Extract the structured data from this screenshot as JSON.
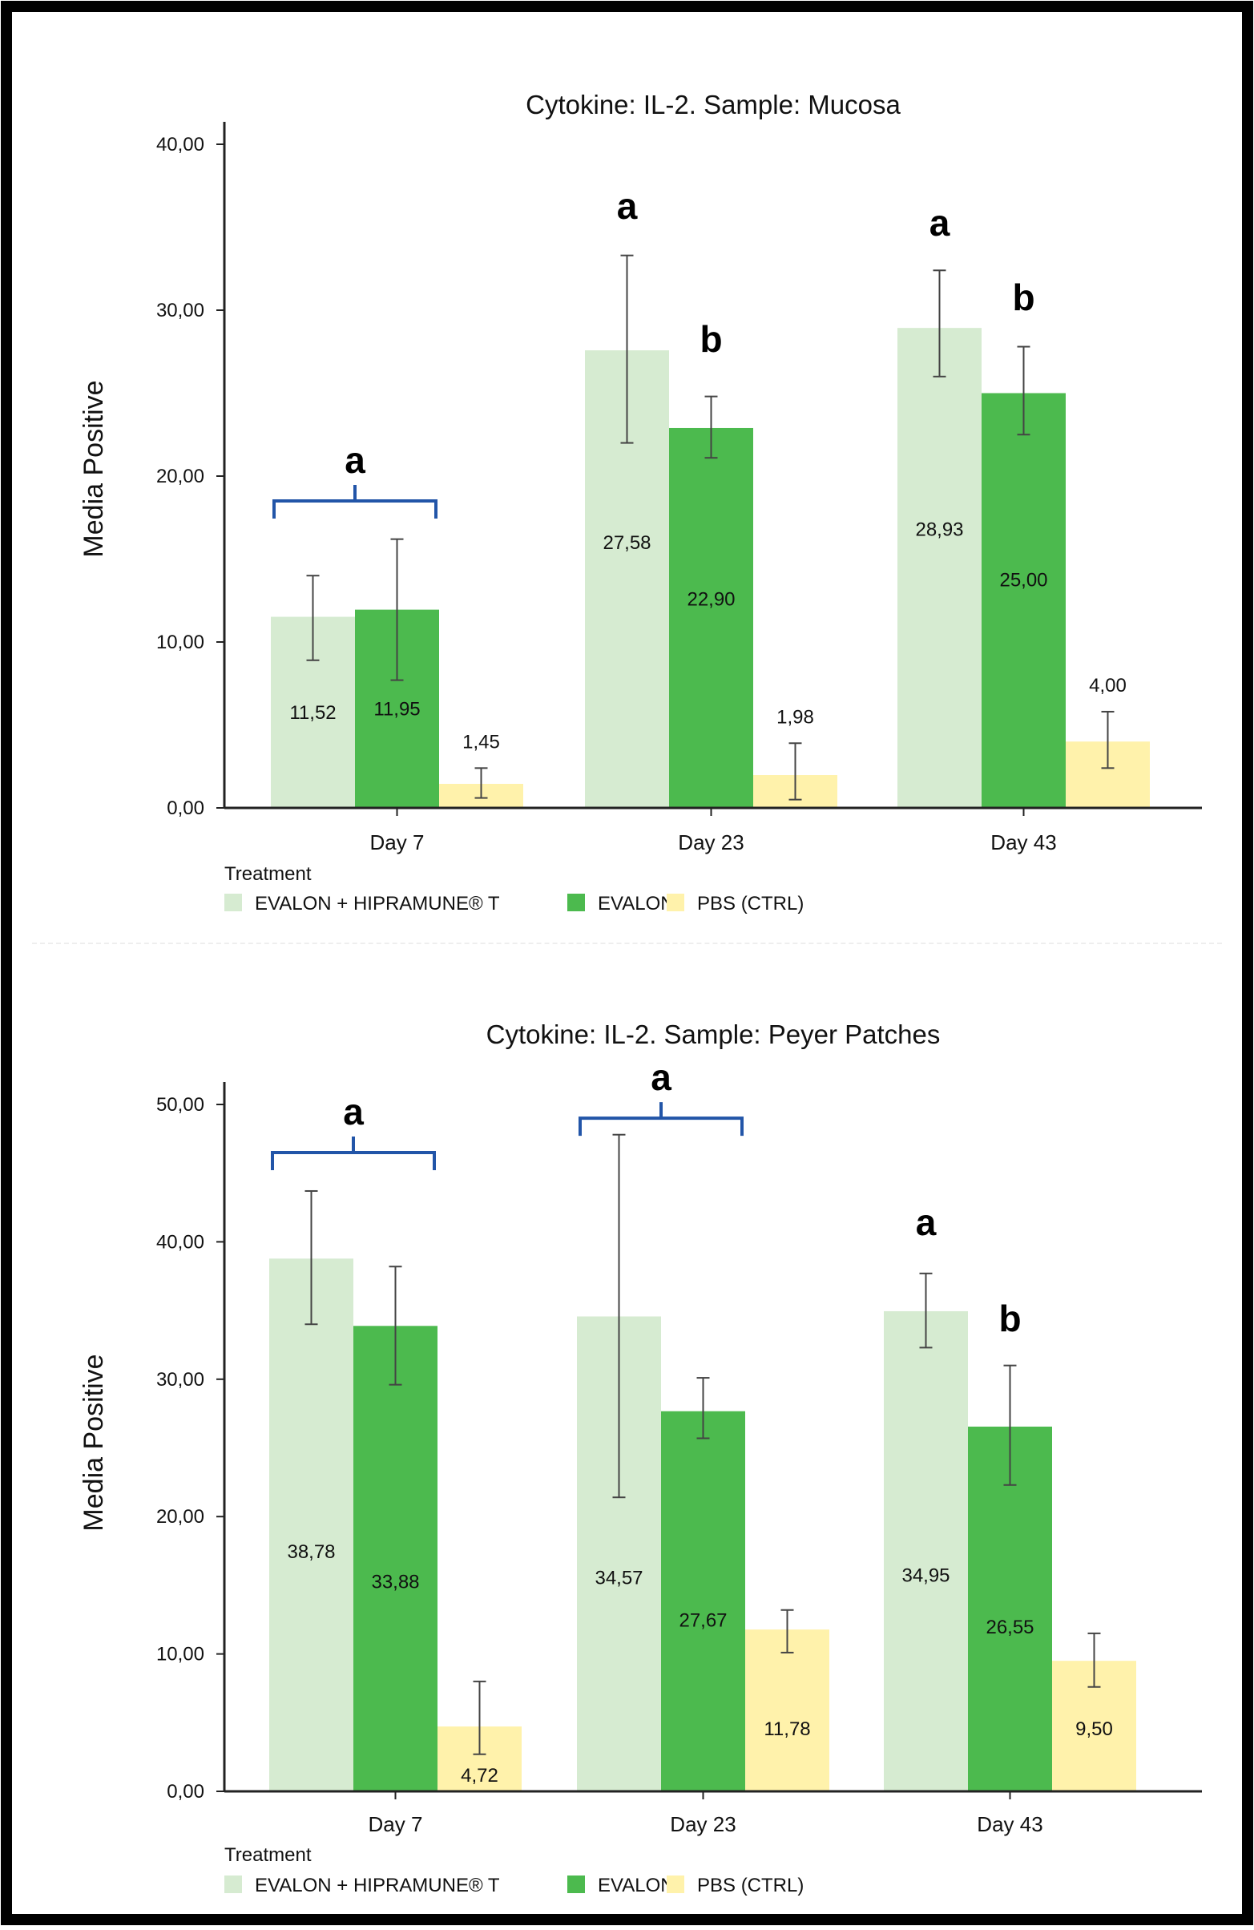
{
  "colors": {
    "evalon_hipramune": "#d6ebd1",
    "evalon": "#4cba4e",
    "pbs": "#fff2ab",
    "bracket": "#2255a8",
    "axis": "#222222",
    "frame": "#000000"
  },
  "chart_data": [
    {
      "type": "bar",
      "title": "Cytokine: IL-2. Sample: Mucosa",
      "ylabel": "Media Positive",
      "xlabel": "",
      "ylim": [
        0,
        40
      ],
      "yticks": [
        "0,00",
        "10,00",
        "20,00",
        "30,00",
        "40,00"
      ],
      "categories": [
        "Day 7",
        "Day 23",
        "Day 43"
      ],
      "legend_title": "Treatment",
      "series": [
        {
          "name": "EVALON + HIPRAMUNE® T",
          "values": [
            11.52,
            27.58,
            28.93
          ],
          "labels": [
            "11,52",
            "27,58",
            "28,93"
          ],
          "err_low": [
            8.9,
            22.0,
            26.0
          ],
          "err_high": [
            14.0,
            33.3,
            32.4
          ]
        },
        {
          "name": "EVALON",
          "values": [
            11.95,
            22.9,
            25.0
          ],
          "labels": [
            "11,95",
            "22,90",
            "25,00"
          ],
          "err_low": [
            7.7,
            21.1,
            22.5
          ],
          "err_high": [
            16.2,
            24.8,
            27.8
          ]
        },
        {
          "name": "PBS (CTRL)",
          "values": [
            1.45,
            1.98,
            4.0
          ],
          "labels": [
            "1,45",
            "1,98",
            "4,00"
          ],
          "err_low": [
            0.6,
            0.5,
            2.4
          ],
          "err_high": [
            2.4,
            3.9,
            5.8
          ]
        }
      ],
      "annotations": [
        {
          "text": "a",
          "category": 0,
          "bracket": true,
          "value": 18.5
        },
        {
          "text": "a",
          "category": 1,
          "series": 0,
          "value": 35.5
        },
        {
          "text": "b",
          "category": 1,
          "series": 1,
          "value": 27.5
        },
        {
          "text": "a",
          "category": 2,
          "series": 0,
          "value": 34.5
        },
        {
          "text": "b",
          "category": 2,
          "series": 1,
          "value": 30.0
        }
      ]
    },
    {
      "type": "bar",
      "title": "Cytokine: IL-2. Sample: Peyer Patches",
      "ylabel": "Media Positive",
      "xlabel": "",
      "ylim": [
        0,
        50
      ],
      "yticks": [
        "0,00",
        "10,00",
        "20,00",
        "30,00",
        "40,00",
        "50,00"
      ],
      "categories": [
        "Day 7",
        "Day 23",
        "Day 43"
      ],
      "legend_title": "Treatment",
      "series": [
        {
          "name": "EVALON + HIPRAMUNE® T",
          "values": [
            38.78,
            34.57,
            34.95
          ],
          "labels": [
            "38,78",
            "34,57",
            "34,95"
          ],
          "err_low": [
            34.0,
            21.4,
            32.3
          ],
          "err_high": [
            43.7,
            47.8,
            37.7
          ]
        },
        {
          "name": "EVALON",
          "values": [
            33.88,
            27.67,
            26.55
          ],
          "labels": [
            "33,88",
            "27,67",
            "26,55"
          ],
          "err_low": [
            29.6,
            25.7,
            22.3
          ],
          "err_high": [
            38.2,
            30.1,
            31.0
          ]
        },
        {
          "name": "PBS (CTRL)",
          "values": [
            4.72,
            11.78,
            9.5
          ],
          "labels": [
            "4,72",
            "11,78",
            "9,50"
          ],
          "err_low": [
            2.7,
            10.1,
            7.6
          ],
          "err_high": [
            8.0,
            13.2,
            11.5
          ]
        }
      ],
      "annotations": [
        {
          "text": "a",
          "category": 0,
          "bracket": true,
          "value": 46.5
        },
        {
          "text": "a",
          "category": 1,
          "bracket": true,
          "value": 49.0
        },
        {
          "text": "a",
          "category": 2,
          "series": 0,
          "value": 40.5
        },
        {
          "text": "b",
          "category": 2,
          "series": 1,
          "value": 33.5
        }
      ]
    }
  ]
}
